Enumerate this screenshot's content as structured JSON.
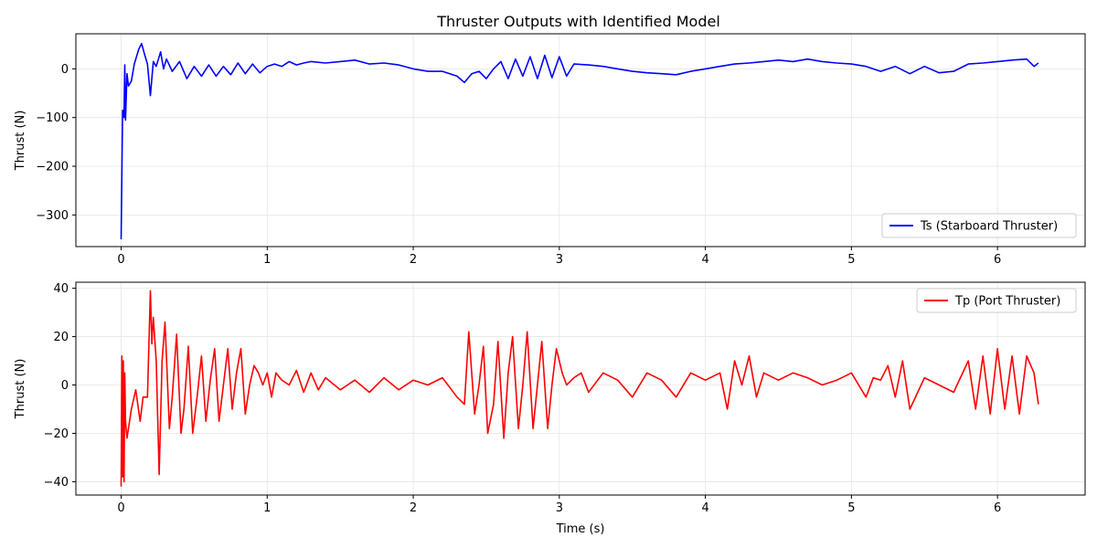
{
  "chart_data": [
    {
      "type": "line",
      "title": "Thruster Outputs with Identified Model",
      "xlabel": "",
      "ylabel": "Thrust (N)",
      "xlim": [
        -0.31,
        6.6
      ],
      "ylim": [
        -365,
        72
      ],
      "xticks": [
        0,
        1,
        2,
        3,
        4,
        5,
        6
      ],
      "xtick_labels": [
        "0",
        "1",
        "2",
        "3",
        "4",
        "5",
        "6"
      ],
      "yticks": [
        0,
        -100,
        -200,
        -300
      ],
      "ytick_labels": [
        "0",
        "−100",
        "−200",
        "−300"
      ],
      "grid": true,
      "legend": "lower-right",
      "series": [
        {
          "name": "Ts (Starboard Thruster)",
          "color": "#0000ff",
          "x": [
            0,
            0.01,
            0.02,
            0.025,
            0.03,
            0.04,
            0.05,
            0.07,
            0.09,
            0.12,
            0.14,
            0.16,
            0.18,
            0.2,
            0.22,
            0.24,
            0.27,
            0.29,
            0.31,
            0.35,
            0.4,
            0.45,
            0.5,
            0.55,
            0.6,
            0.65,
            0.7,
            0.75,
            0.8,
            0.85,
            0.9,
            0.95,
            1.0,
            1.05,
            1.1,
            1.15,
            1.2,
            1.25,
            1.3,
            1.4,
            1.5,
            1.6,
            1.7,
            1.8,
            1.9,
            2.0,
            2.1,
            2.2,
            2.3,
            2.35,
            2.4,
            2.45,
            2.5,
            2.55,
            2.6,
            2.65,
            2.7,
            2.75,
            2.8,
            2.85,
            2.9,
            2.95,
            3.0,
            3.05,
            3.1,
            3.2,
            3.3,
            3.4,
            3.5,
            3.6,
            3.7,
            3.8,
            3.9,
            4.0,
            4.1,
            4.2,
            4.3,
            4.4,
            4.5,
            4.6,
            4.7,
            4.8,
            4.9,
            5.0,
            5.1,
            5.2,
            5.3,
            5.4,
            5.5,
            5.6,
            5.7,
            5.8,
            5.9,
            6.0,
            6.1,
            6.2,
            6.25,
            6.28
          ],
          "y": [
            -350,
            -85,
            -100,
            8,
            -105,
            -10,
            -35,
            -25,
            10,
            40,
            52,
            30,
            10,
            -55,
            15,
            5,
            35,
            0,
            20,
            -5,
            15,
            -20,
            5,
            -15,
            8,
            -15,
            5,
            -12,
            12,
            -10,
            10,
            -8,
            5,
            10,
            5,
            15,
            8,
            12,
            15,
            12,
            15,
            18,
            10,
            12,
            8,
            0,
            -5,
            -5,
            -15,
            -28,
            -10,
            -5,
            -20,
            0,
            15,
            -20,
            20,
            -15,
            25,
            -20,
            28,
            -18,
            25,
            -15,
            10,
            8,
            5,
            0,
            -5,
            -8,
            -10,
            -12,
            -5,
            0,
            5,
            10,
            12,
            15,
            18,
            15,
            20,
            15,
            12,
            10,
            5,
            -5,
            5,
            -10,
            5,
            -8,
            -5,
            10,
            12,
            15,
            18,
            20,
            5,
            12
          ]
        }
      ]
    },
    {
      "type": "line",
      "title": "",
      "xlabel": "Time (s)",
      "ylabel": "Thrust (N)",
      "xlim": [
        -0.31,
        6.6
      ],
      "ylim": [
        -45.5,
        42.5
      ],
      "xticks": [
        0,
        1,
        2,
        3,
        4,
        5,
        6
      ],
      "xtick_labels": [
        "0",
        "1",
        "2",
        "3",
        "4",
        "5",
        "6"
      ],
      "yticks": [
        40,
        20,
        0,
        -20,
        -40
      ],
      "ytick_labels": [
        "40",
        "20",
        "0",
        "−20",
        "−40"
      ],
      "grid": true,
      "legend": "top-right",
      "series": [
        {
          "name": "Tp (Port Thruster)",
          "color": "#ff0000",
          "x": [
            0,
            0.005,
            0.01,
            0.015,
            0.02,
            0.025,
            0.03,
            0.04,
            0.05,
            0.07,
            0.1,
            0.13,
            0.15,
            0.18,
            0.2,
            0.21,
            0.22,
            0.24,
            0.26,
            0.28,
            0.3,
            0.33,
            0.35,
            0.38,
            0.41,
            0.43,
            0.46,
            0.49,
            0.52,
            0.55,
            0.58,
            0.61,
            0.64,
            0.67,
            0.7,
            0.73,
            0.76,
            0.79,
            0.82,
            0.85,
            0.88,
            0.91,
            0.94,
            0.97,
            1.0,
            1.03,
            1.06,
            1.1,
            1.15,
            1.2,
            1.25,
            1.3,
            1.35,
            1.4,
            1.5,
            1.6,
            1.7,
            1.8,
            1.9,
            2.0,
            2.1,
            2.2,
            2.3,
            2.35,
            2.38,
            2.42,
            2.45,
            2.48,
            2.51,
            2.55,
            2.58,
            2.62,
            2.65,
            2.68,
            2.72,
            2.75,
            2.78,
            2.82,
            2.85,
            2.88,
            2.92,
            2.95,
            2.98,
            3.02,
            3.05,
            3.1,
            3.15,
            3.2,
            3.3,
            3.4,
            3.5,
            3.6,
            3.7,
            3.8,
            3.9,
            4.0,
            4.1,
            4.15,
            4.2,
            4.25,
            4.3,
            4.35,
            4.4,
            4.5,
            4.6,
            4.7,
            4.8,
            4.9,
            5.0,
            5.1,
            5.15,
            5.2,
            5.25,
            5.3,
            5.35,
            5.4,
            5.5,
            5.6,
            5.7,
            5.8,
            5.85,
            5.9,
            5.95,
            6.0,
            6.05,
            6.1,
            6.15,
            6.2,
            6.25,
            6.28
          ],
          "y": [
            -42,
            12,
            -38,
            10,
            -40,
            5,
            -15,
            -22,
            -18,
            -10,
            -2,
            -15,
            -5,
            -5,
            39,
            17,
            28,
            10,
            -37,
            10,
            26,
            -18,
            -5,
            21,
            -20,
            -10,
            16,
            -20,
            -5,
            12,
            -15,
            2,
            15,
            -15,
            0,
            15,
            -10,
            5,
            15,
            -12,
            0,
            8,
            5,
            0,
            5,
            -5,
            5,
            2,
            0,
            6,
            -3,
            5,
            -2,
            3,
            -2,
            2,
            -3,
            3,
            -2,
            2,
            0,
            3,
            -5,
            -8,
            22,
            -12,
            0,
            16,
            -20,
            -8,
            18,
            -22,
            5,
            20,
            -18,
            0,
            22,
            -18,
            0,
            18,
            -18,
            0,
            15,
            5,
            0,
            3,
            5,
            -3,
            5,
            2,
            -5,
            5,
            2,
            -5,
            5,
            2,
            5,
            -10,
            10,
            0,
            12,
            -5,
            5,
            2,
            5,
            3,
            0,
            2,
            5,
            -5,
            3,
            2,
            8,
            -5,
            10,
            -10,
            3,
            0,
            -3,
            10,
            -10,
            12,
            -12,
            15,
            -10,
            12,
            -12,
            12,
            5,
            -8
          ]
        }
      ]
    }
  ]
}
